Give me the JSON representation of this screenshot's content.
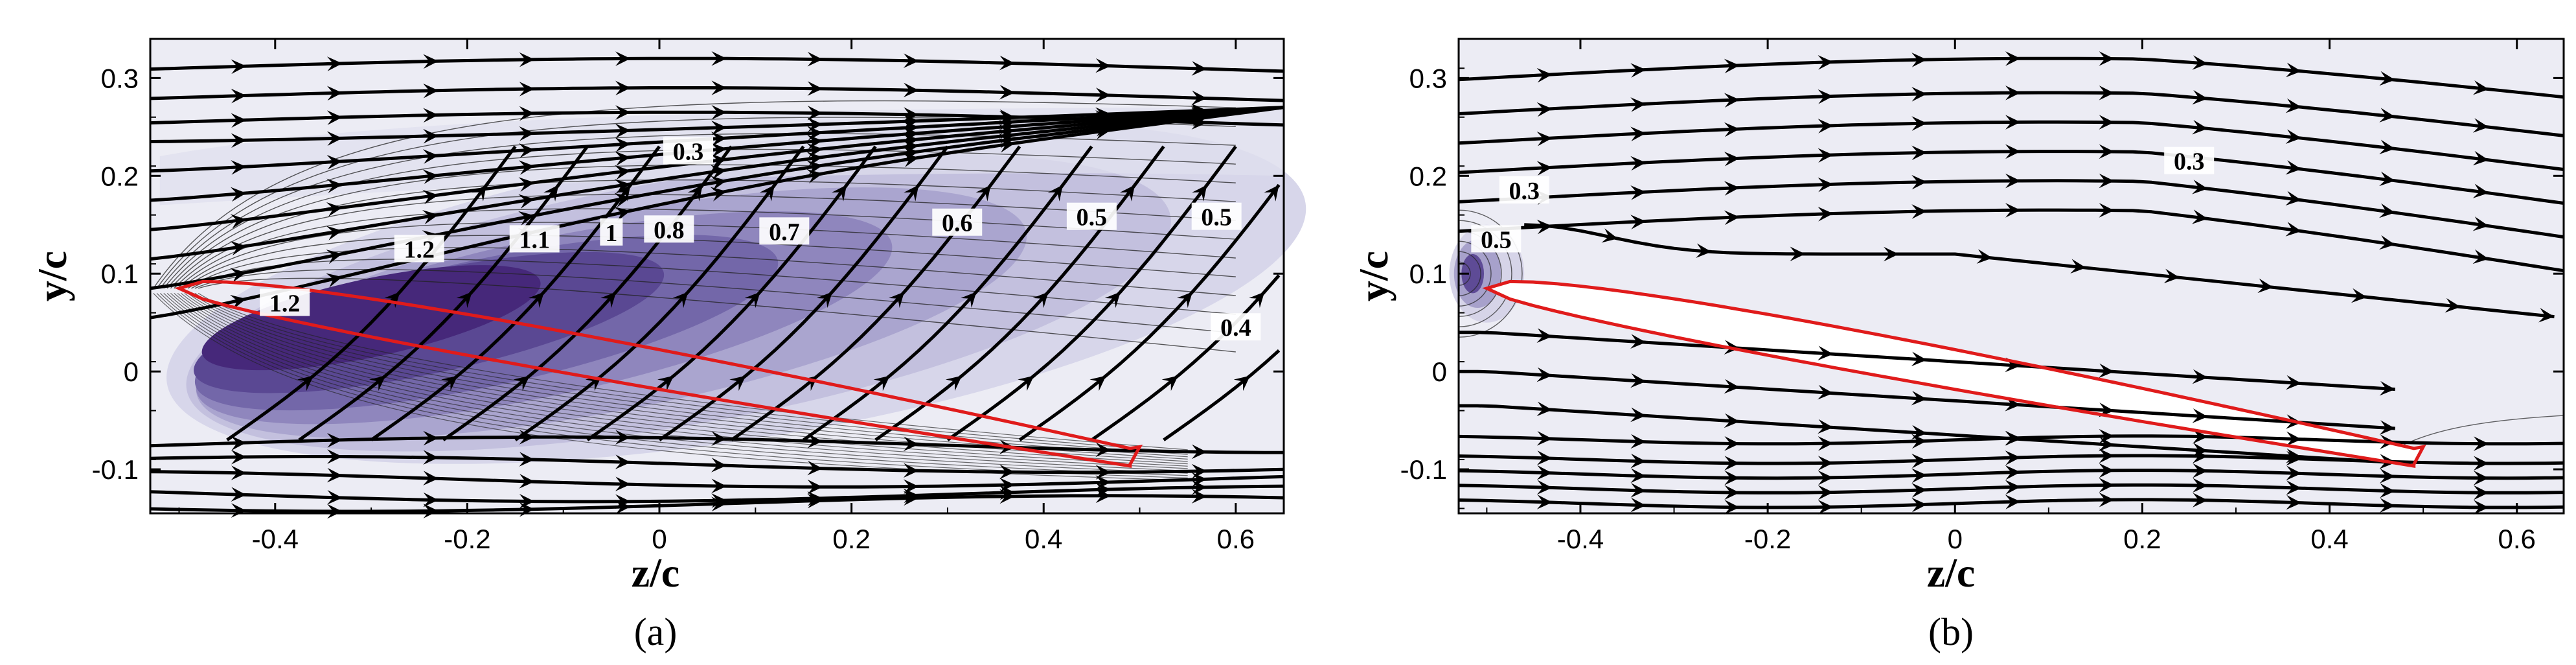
{
  "chart_data": [
    {
      "panel": "(a)",
      "type": "contour",
      "xlabel": "z/c",
      "ylabel": "y/c",
      "xlim": [
        -0.53,
        0.65
      ],
      "ylim": [
        -0.145,
        0.34
      ],
      "x_ticks": [
        -0.4,
        -0.2,
        0,
        0.2,
        0.4,
        0.6
      ],
      "x_tick_labels": [
        "-0.4",
        "-0.2",
        "0",
        "0.2",
        "0.4",
        "0.6"
      ],
      "y_ticks": [
        -0.1,
        0,
        0.1,
        0.2,
        0.3
      ],
      "y_tick_labels": [
        "-0.1",
        "0",
        "0.1",
        "0.2",
        "0.3"
      ],
      "background_color": "#ececf4",
      "outline_color": "#e01b1b",
      "contour_labels": [
        {
          "text": "0.3",
          "x": 0.03,
          "y": 0.225
        },
        {
          "text": "1.2",
          "x": -0.25,
          "y": 0.125
        },
        {
          "text": "1.1",
          "x": -0.13,
          "y": 0.135
        },
        {
          "text": "1",
          "x": -0.05,
          "y": 0.142
        },
        {
          "text": "0.8",
          "x": 0.01,
          "y": 0.145
        },
        {
          "text": "0.7",
          "x": 0.13,
          "y": 0.143
        },
        {
          "text": "0.6",
          "x": 0.31,
          "y": 0.152
        },
        {
          "text": "0.5",
          "x": 0.45,
          "y": 0.158
        },
        {
          "text": "0.5",
          "x": 0.58,
          "y": 0.158
        },
        {
          "text": "1.2",
          "x": -0.39,
          "y": 0.07
        },
        {
          "text": "0.4",
          "x": 0.6,
          "y": 0.045
        }
      ]
    },
    {
      "panel": "(b)",
      "type": "contour",
      "xlabel": "z/c",
      "ylabel": "y/c",
      "xlim": [
        -0.53,
        0.65
      ],
      "ylim": [
        -0.145,
        0.34
      ],
      "x_ticks": [
        -0.4,
        -0.2,
        0,
        0.2,
        0.4,
        0.6
      ],
      "x_tick_labels": [
        "-0.4",
        "-0.2",
        "0",
        "0.2",
        "0.4",
        "0.6"
      ],
      "y_ticks": [
        -0.1,
        0,
        0.1,
        0.2,
        0.3
      ],
      "y_tick_labels": [
        "-0.1",
        "0",
        "0.1",
        "0.2",
        "0.3"
      ],
      "background_color": "#ececf4",
      "outline_color": "#e01b1b",
      "contour_labels": [
        {
          "text": "0.3",
          "x": -0.46,
          "y": 0.185
        },
        {
          "text": "0.5",
          "x": -0.49,
          "y": 0.135
        },
        {
          "text": "0.3",
          "x": 0.25,
          "y": 0.215
        }
      ]
    }
  ]
}
